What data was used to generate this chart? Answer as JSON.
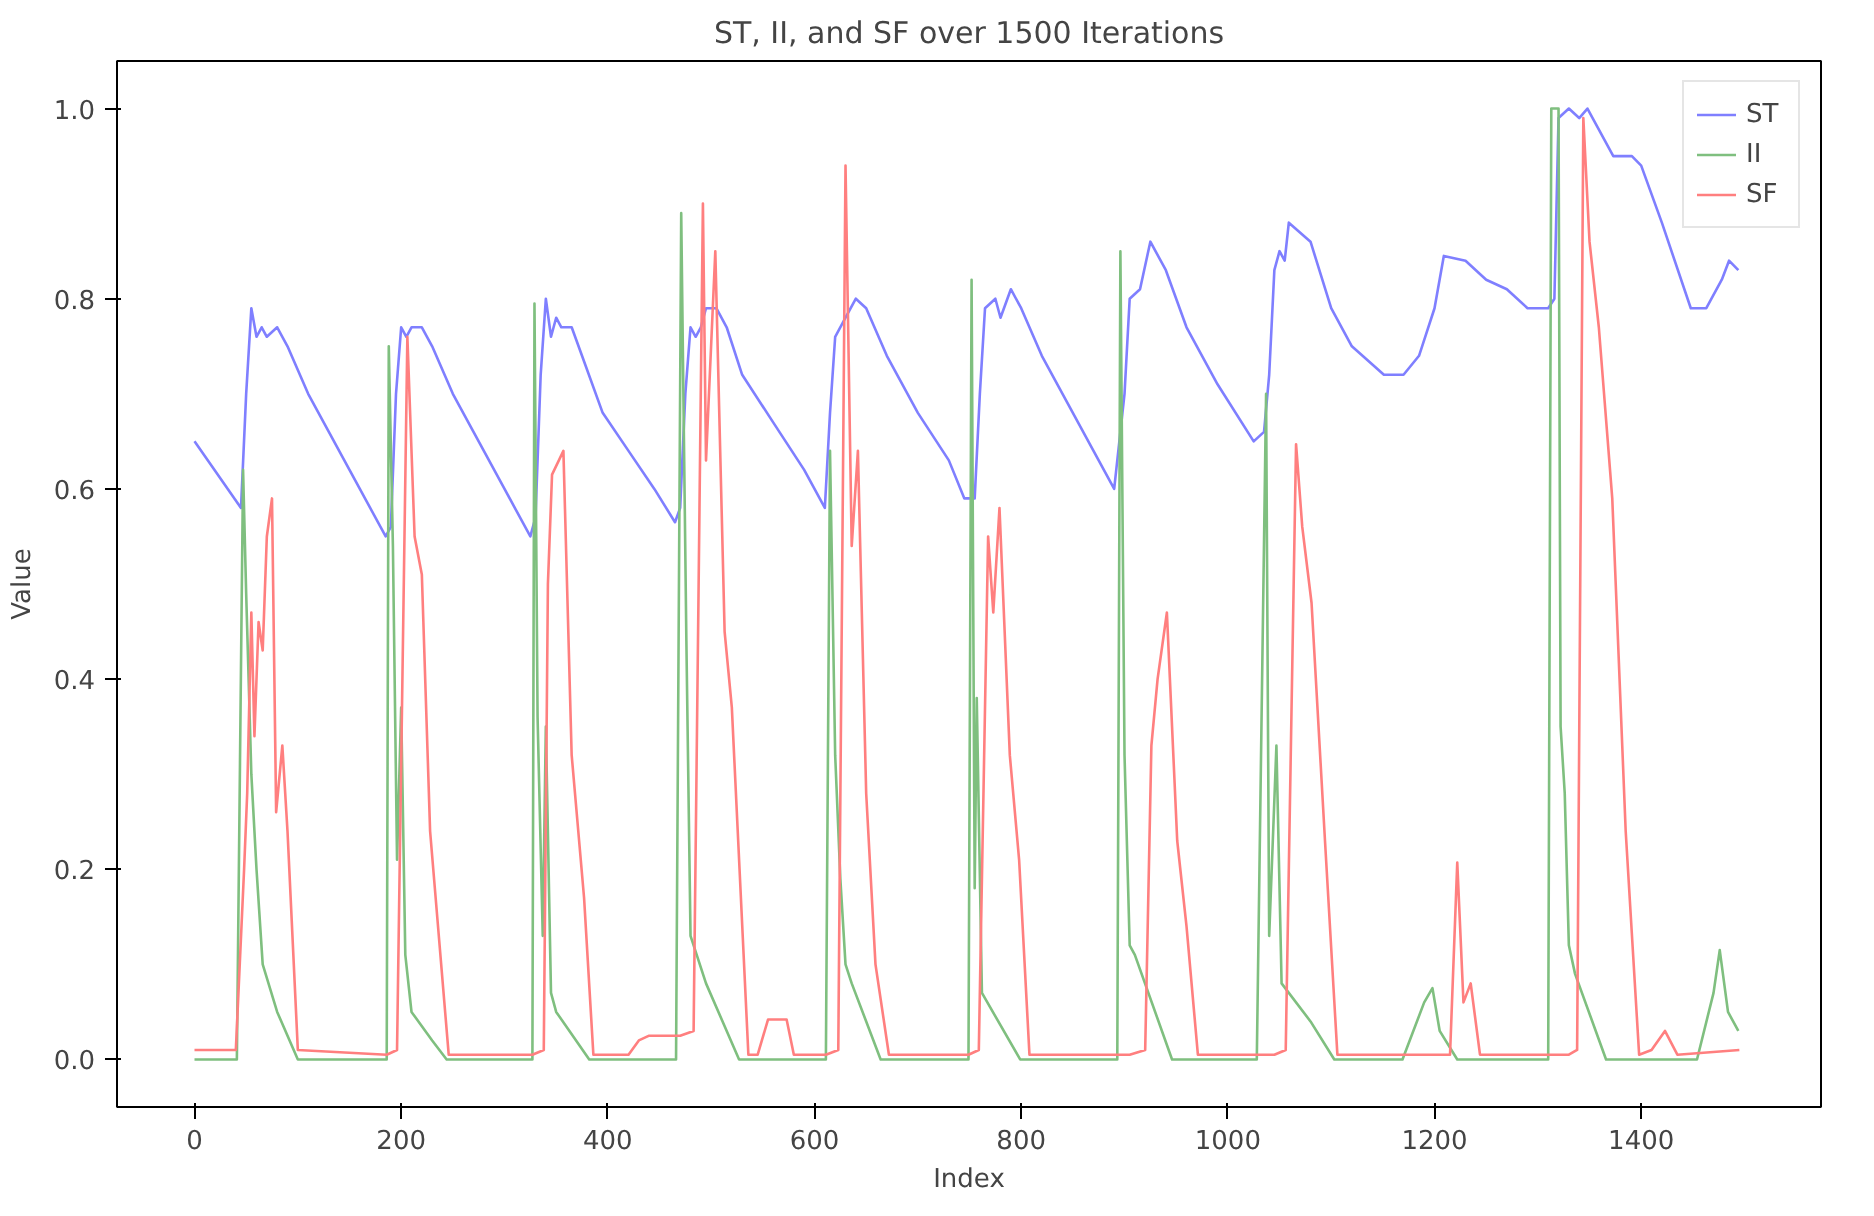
{
  "chart_data": {
    "type": "line",
    "title": "ST, II, and SF over 1500 Iterations",
    "xlabel": "Index",
    "ylabel": "Value",
    "xlim": [
      -75,
      1574
    ],
    "ylim": [
      -0.05,
      1.05
    ],
    "xticks": [
      0,
      200,
      400,
      600,
      800,
      1000,
      1200,
      1400
    ],
    "yticks": [
      {
        "value": 0,
        "label": "0.0"
      },
      {
        "value": 0.2,
        "label": "0.2"
      },
      {
        "value": 0.4,
        "label": "0.4"
      },
      {
        "value": 0.6,
        "label": "0.6"
      },
      {
        "value": 0.8,
        "label": "0.8"
      },
      {
        "value": 1,
        "label": "1.0"
      }
    ],
    "grid": false,
    "legend": "top right",
    "marker": "none",
    "line_style": "solid",
    "series": [
      {
        "name": "ST",
        "color": "#7f7fff",
        "x": [
          0,
          45,
          50,
          55,
          60,
          65,
          70,
          80,
          90,
          110,
          130,
          150,
          170,
          185,
          190,
          195,
          200,
          205,
          210,
          220,
          230,
          250,
          270,
          300,
          325,
          330,
          335,
          340,
          345,
          350,
          355,
          365,
          375,
          395,
          420,
          445,
          465,
          470,
          475,
          480,
          485,
          490,
          495,
          505,
          515,
          530,
          560,
          590,
          610,
          615,
          620,
          630,
          640,
          650,
          670,
          700,
          730,
          745,
          755,
          760,
          765,
          775,
          780,
          790,
          800,
          820,
          850,
          870,
          890,
          900,
          905,
          915,
          925,
          940,
          960,
          990,
          1025,
          1035,
          1040,
          1045,
          1050,
          1055,
          1059,
          1080,
          1100,
          1120,
          1151,
          1170,
          1185,
          1200,
          1209,
          1230,
          1250,
          1270,
          1290,
          1310,
          1316,
          1320,
          1330,
          1340,
          1348,
          1373,
          1391,
          1400,
          1420,
          1448,
          1463,
          1478,
          1485,
          1494
        ],
        "values": [
          0.65,
          0.58,
          0.7,
          0.79,
          0.76,
          0.77,
          0.76,
          0.77,
          0.75,
          0.7,
          0.66,
          0.62,
          0.58,
          0.55,
          0.56,
          0.7,
          0.77,
          0.76,
          0.77,
          0.77,
          0.75,
          0.7,
          0.66,
          0.6,
          0.55,
          0.57,
          0.72,
          0.8,
          0.76,
          0.78,
          0.77,
          0.77,
          0.74,
          0.68,
          0.64,
          0.6,
          0.565,
          0.58,
          0.7,
          0.77,
          0.76,
          0.77,
          0.79,
          0.79,
          0.77,
          0.72,
          0.67,
          0.62,
          0.58,
          0.68,
          0.76,
          0.78,
          0.8,
          0.79,
          0.74,
          0.68,
          0.63,
          0.59,
          0.59,
          0.7,
          0.79,
          0.8,
          0.78,
          0.81,
          0.79,
          0.74,
          0.68,
          0.64,
          0.6,
          0.7,
          0.8,
          0.81,
          0.86,
          0.83,
          0.77,
          0.71,
          0.65,
          0.66,
          0.72,
          0.83,
          0.85,
          0.84,
          0.88,
          0.86,
          0.79,
          0.75,
          0.72,
          0.72,
          0.74,
          0.79,
          0.845,
          0.84,
          0.82,
          0.81,
          0.79,
          0.79,
          0.8,
          0.99,
          1.0,
          0.99,
          1.0,
          0.95,
          0.95,
          0.94,
          0.88,
          0.79,
          0.79,
          0.82,
          0.84,
          0.83
        ]
      },
      {
        "name": "II",
        "color": "#7fbf7f",
        "x": [
          0,
          41,
          47,
          50,
          55,
          60,
          66,
          80,
          100,
          186,
          188,
          192,
          196,
          200,
          204,
          210,
          230,
          244,
          327,
          329,
          332,
          337,
          340,
          345,
          350,
          382,
          466,
          471,
          476,
          480,
          495,
          527,
          611,
          615,
          620,
          625,
          630,
          636,
          664,
          749,
          752,
          755,
          757,
          762,
          799,
          893,
          896,
          900,
          905,
          910,
          946,
          1028,
          1037,
          1040,
          1047,
          1052,
          1080,
          1103,
          1169,
          1190,
          1198,
          1205,
          1222,
          1310,
          1313,
          1320,
          1322,
          1326,
          1330,
          1336,
          1366,
          1454,
          1470,
          1476,
          1484,
          1494
        ],
        "values": [
          0,
          0,
          0.62,
          0.49,
          0.3,
          0.2,
          0.1,
          0.05,
          0,
          0,
          0.75,
          0.54,
          0.21,
          0.37,
          0.11,
          0.05,
          0.02,
          0,
          0,
          0.795,
          0.36,
          0.13,
          0.35,
          0.07,
          0.05,
          0,
          0,
          0.89,
          0.44,
          0.13,
          0.08,
          0,
          0,
          0.64,
          0.32,
          0.19,
          0.1,
          0.08,
          0,
          0,
          0.82,
          0.18,
          0.38,
          0.07,
          0,
          0,
          0.85,
          0.32,
          0.12,
          0.11,
          0,
          0,
          0.7,
          0.13,
          0.33,
          0.08,
          0.04,
          0,
          0,
          0.06,
          0.075,
          0.03,
          0,
          0,
          1.0,
          1.0,
          0.35,
          0.28,
          0.12,
          0.09,
          0,
          0,
          0.07,
          0.115,
          0.05,
          0.03
        ]
      },
      {
        "name": "SF",
        "color": "#ff7f7f",
        "x": [
          0,
          40,
          48,
          51,
          55,
          58,
          62,
          66,
          70,
          75,
          79,
          85,
          90,
          100,
          186,
          196,
          206,
          213,
          220,
          228,
          246,
          327,
          338,
          342,
          346,
          357,
          365,
          377,
          386,
          420,
          430,
          440,
          465,
          470,
          483,
          492,
          495,
          504,
          513,
          520,
          536,
          545,
          555,
          573,
          580,
          611,
          623,
          630,
          636,
          642,
          650,
          659,
          672,
          749,
          759,
          768,
          773,
          779,
          789,
          798,
          808,
          905,
          920,
          926,
          932,
          941,
          951,
          960,
          971,
          1045,
          1056,
          1066,
          1072,
          1081,
          1094,
          1106,
          1215,
          1222,
          1228,
          1235,
          1244,
          1330,
          1338,
          1344,
          1350,
          1359,
          1372,
          1385,
          1398,
          1410,
          1423,
          1435,
          1495
        ],
        "values": [
          0.01,
          0.01,
          0.2,
          0.28,
          0.47,
          0.34,
          0.46,
          0.43,
          0.55,
          0.59,
          0.26,
          0.33,
          0.24,
          0.01,
          0.005,
          0.01,
          0.76,
          0.55,
          0.51,
          0.24,
          0.005,
          0.005,
          0.01,
          0.5,
          0.615,
          0.64,
          0.32,
          0.17,
          0.005,
          0.005,
          0.02,
          0.025,
          0.025,
          0.025,
          0.03,
          0.9,
          0.63,
          0.85,
          0.45,
          0.37,
          0.005,
          0.005,
          0.042,
          0.042,
          0.005,
          0.005,
          0.01,
          0.94,
          0.54,
          0.64,
          0.28,
          0.1,
          0.005,
          0.005,
          0.01,
          0.55,
          0.47,
          0.58,
          0.32,
          0.21,
          0.005,
          0.005,
          0.01,
          0.33,
          0.4,
          0.47,
          0.23,
          0.14,
          0.005,
          0.005,
          0.01,
          0.647,
          0.56,
          0.48,
          0.23,
          0.005,
          0.005,
          0.207,
          0.06,
          0.08,
          0.005,
          0.005,
          0.01,
          0.99,
          0.86,
          0.77,
          0.59,
          0.24,
          0.005,
          0.01,
          0.03,
          0.005,
          0.01
        ]
      }
    ]
  }
}
